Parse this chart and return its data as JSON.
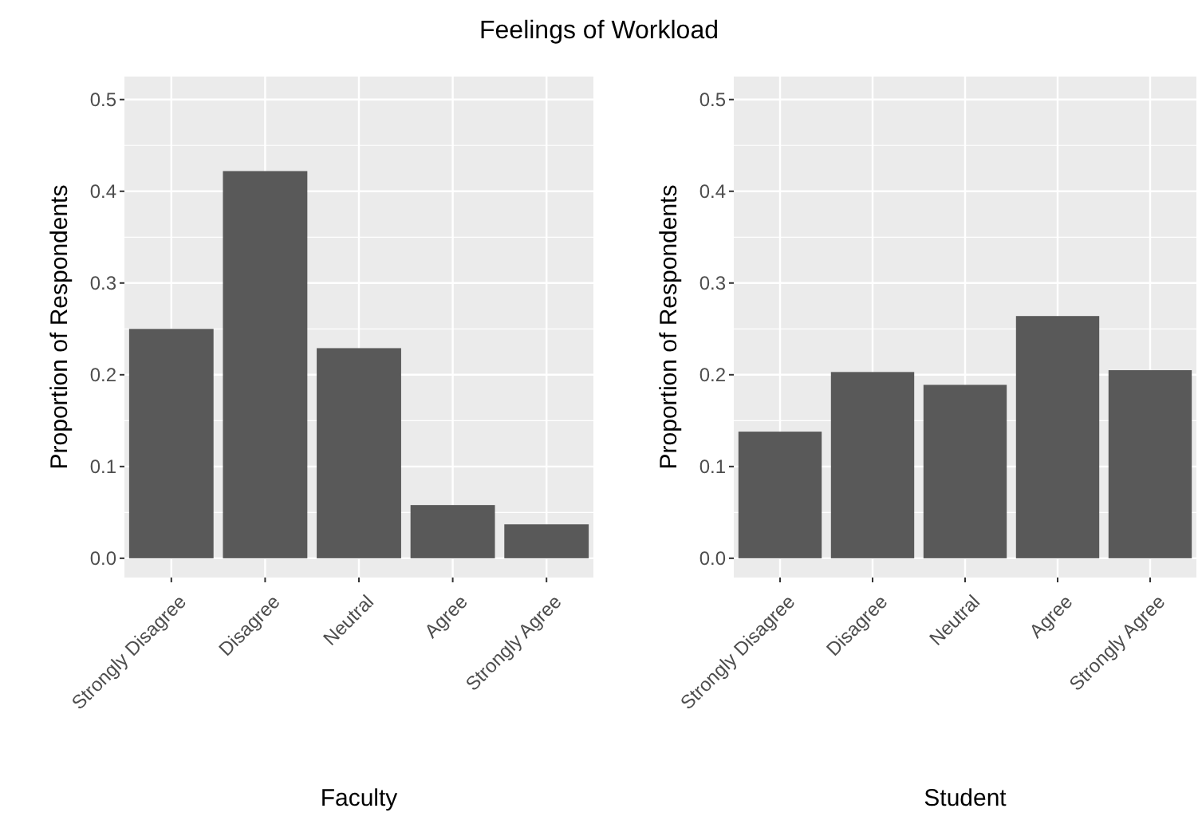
{
  "chart_data": [
    {
      "type": "bar",
      "title": "Feelings of Workload",
      "xlabel": "Faculty",
      "ylabel": "Proportion of Respondents",
      "categories": [
        "Strongly Disagree",
        "Disagree",
        "Neutral",
        "Agree",
        "Strongly Agree"
      ],
      "values": [
        0.25,
        0.422,
        0.229,
        0.058,
        0.037
      ],
      "color": "#595959",
      "ylim": [
        -0.021,
        0.525
      ],
      "yticks": [
        {
          "value": 0,
          "label": "0.0"
        },
        {
          "value": 0.1,
          "label": "0.1"
        },
        {
          "value": 0.2,
          "label": "0.2"
        },
        {
          "value": 0.3,
          "label": "0.3"
        },
        {
          "value": 0.4,
          "label": "0.4"
        },
        {
          "value": 0.5,
          "label": "0.5"
        }
      ],
      "grid": true
    },
    {
      "type": "bar",
      "xlabel": "Student",
      "ylabel": "Proportion of Respondents",
      "categories": [
        "Strongly Disagree",
        "Disagree",
        "Neutral",
        "Agree",
        "Strongly Agree"
      ],
      "values": [
        0.138,
        0.203,
        0.189,
        0.264,
        0.205
      ],
      "color": "#595959",
      "ylim": [
        -0.021,
        0.525
      ],
      "yticks": [
        {
          "value": 0,
          "label": "0.0"
        },
        {
          "value": 0.1,
          "label": "0.1"
        },
        {
          "value": 0.2,
          "label": "0.2"
        },
        {
          "value": 0.3,
          "label": "0.3"
        },
        {
          "value": 0.4,
          "label": "0.4"
        },
        {
          "value": 0.5,
          "label": "0.5"
        }
      ],
      "grid": true
    }
  ]
}
